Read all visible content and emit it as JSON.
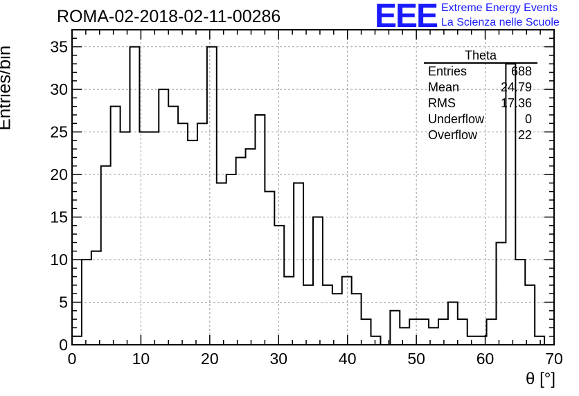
{
  "header": {
    "title": "ROMA-02-2018-02-11-00286",
    "logo": "EEE",
    "logo_line1": "Extreme Energy Events",
    "logo_line2": "La Scienza nelle Scuole",
    "logo_color": "#1a1aff"
  },
  "stats": {
    "title": "Theta",
    "rows": [
      {
        "label": "Entries",
        "value": "688"
      },
      {
        "label": "Mean",
        "value": "24.79"
      },
      {
        "label": "RMS",
        "value": "17.36"
      },
      {
        "label": "Underflow",
        "value": "0"
      },
      {
        "label": "Overflow",
        "value": "22"
      }
    ]
  },
  "chart_data": {
    "type": "bar",
    "style": "step-histogram",
    "title": "ROMA-02-2018-02-11-00286",
    "xlabel": "θ [°]",
    "ylabel": "Entries/bin",
    "xlim": [
      0,
      70
    ],
    "ylim": [
      0,
      37
    ],
    "grid": true,
    "x_ticks": [
      0,
      10,
      20,
      30,
      40,
      50,
      60,
      70
    ],
    "y_ticks": [
      0,
      5,
      10,
      15,
      20,
      25,
      30,
      35
    ],
    "bin_width": 1.4,
    "series": [
      {
        "name": "Theta",
        "bin_edges": [
          0,
          1.4,
          2.8,
          4.2,
          5.6,
          7.0,
          8.4,
          9.8,
          11.2,
          12.6,
          14.0,
          15.4,
          16.8,
          18.2,
          19.6,
          21.0,
          22.4,
          23.8,
          25.2,
          26.6,
          28.0,
          29.4,
          30.8,
          32.2,
          33.6,
          35.0,
          36.4,
          37.8,
          39.2,
          40.6,
          42.0,
          43.4,
          44.8,
          46.2,
          47.6,
          49.0,
          50.4,
          51.8,
          53.2,
          54.6,
          56.0,
          57.4,
          58.8,
          60.2,
          61.6,
          63.0,
          64.4,
          65.8,
          67.2,
          68.6,
          70.0
        ],
        "values": [
          1,
          10,
          11,
          21,
          28,
          25,
          35,
          25,
          25,
          30,
          28,
          26,
          24,
          26,
          35,
          19,
          20,
          22,
          23,
          27,
          18,
          14,
          8,
          19,
          7,
          15,
          7,
          6,
          8,
          6,
          3,
          1,
          0,
          4,
          2,
          3,
          3,
          2,
          3,
          5,
          3,
          1,
          1,
          3,
          12,
          33,
          10,
          7,
          1,
          0
        ],
        "color": "#000000"
      }
    ]
  }
}
